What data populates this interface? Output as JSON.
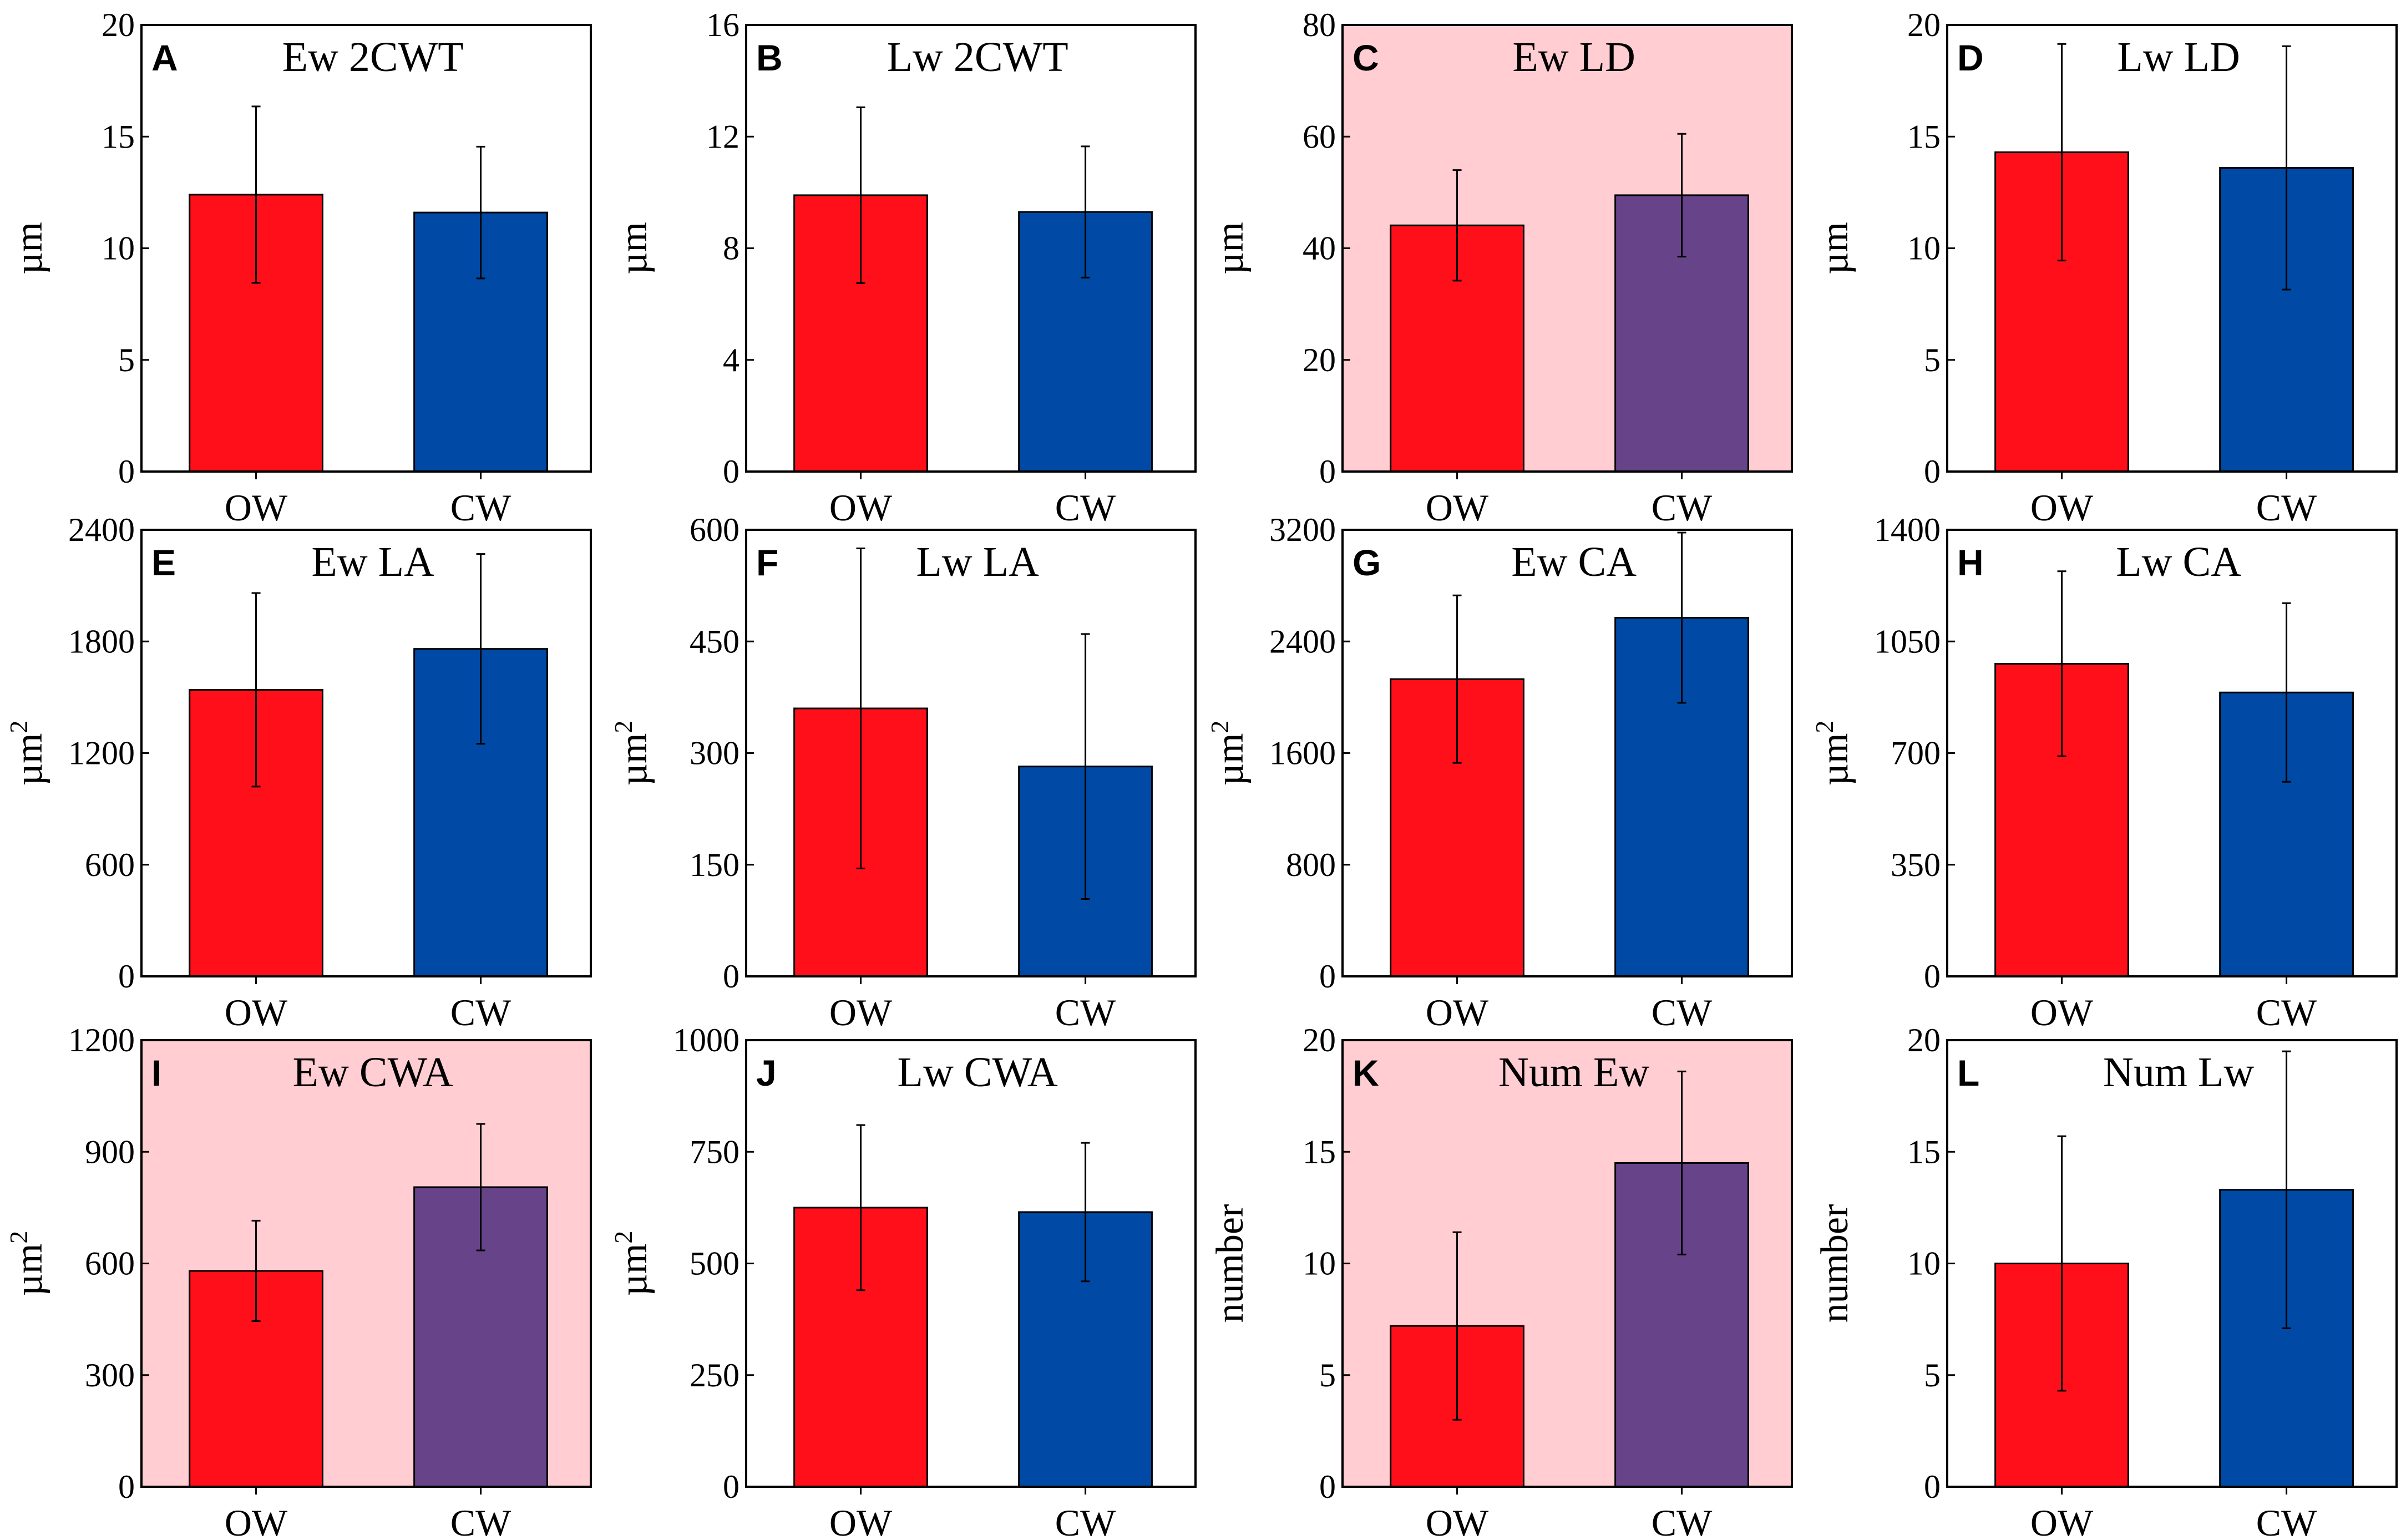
{
  "colors": {
    "ow": "#ff0f19",
    "cw": "#004aa5",
    "cw_significant": "#67448a",
    "significant_bg": "#ffcdd2",
    "significant_title": "#8a5a5a"
  },
  "chart_data": [
    {
      "type": "bar",
      "letter": "A",
      "title": "Ew 2CWT",
      "ylabel": "µm",
      "ylabel_sup": "",
      "xlabel": "",
      "ylim": [
        0,
        20
      ],
      "yticks": [
        "0",
        "5",
        "10",
        "15",
        "20"
      ],
      "categories": [
        "OW",
        "CW"
      ],
      "values": [
        12.4,
        11.6
      ],
      "errors": [
        3.95,
        2.95
      ],
      "significant": false
    },
    {
      "type": "bar",
      "letter": "B",
      "title": "Lw 2CWT",
      "ylabel": "µm",
      "ylabel_sup": "",
      "xlabel": "",
      "ylim": [
        0,
        16
      ],
      "yticks": [
        "0",
        "4",
        "8",
        "12",
        "16"
      ],
      "categories": [
        "OW",
        "CW"
      ],
      "values": [
        9.9,
        9.3
      ],
      "errors": [
        3.15,
        2.35
      ],
      "significant": false
    },
    {
      "type": "bar",
      "letter": "C",
      "title": "Ew LD",
      "ylabel": "µm",
      "ylabel_sup": "",
      "xlabel": "",
      "ylim": [
        0,
        80
      ],
      "yticks": [
        "0",
        "20",
        "40",
        "60",
        "80"
      ],
      "categories": [
        "OW",
        "CW"
      ],
      "values": [
        44.1,
        49.5
      ],
      "errors": [
        9.9,
        11.0
      ],
      "significant": true
    },
    {
      "type": "bar",
      "letter": "D",
      "title": "Lw LD",
      "ylabel": "µm",
      "ylabel_sup": "",
      "xlabel": "",
      "ylim": [
        0,
        20
      ],
      "yticks": [
        "0",
        "5",
        "10",
        "15",
        "20"
      ],
      "categories": [
        "OW",
        "CW"
      ],
      "values": [
        14.3,
        13.6
      ],
      "errors": [
        4.85,
        5.45
      ],
      "significant": false
    },
    {
      "type": "bar",
      "letter": "E",
      "title": "Ew LA",
      "ylabel": "µm",
      "ylabel_sup": "2",
      "xlabel": "",
      "ylim": [
        0,
        2400
      ],
      "yticks": [
        "0",
        "600",
        "1200",
        "1800",
        "2400"
      ],
      "categories": [
        "OW",
        "CW"
      ],
      "values": [
        1540,
        1760
      ],
      "errors": [
        520,
        510
      ],
      "significant": false
    },
    {
      "type": "bar",
      "letter": "F",
      "title": "Lw LA",
      "ylabel": "µm",
      "ylabel_sup": "2",
      "xlabel": "",
      "ylim": [
        0,
        600
      ],
      "yticks": [
        "0",
        "150",
        "300",
        "450",
        "600"
      ],
      "categories": [
        "OW",
        "CW"
      ],
      "values": [
        360,
        282
      ],
      "errors": [
        215,
        178
      ],
      "significant": false
    },
    {
      "type": "bar",
      "letter": "G",
      "title": "Ew CA",
      "ylabel": "µm",
      "ylabel_sup": "2",
      "xlabel": "",
      "ylim": [
        0,
        3200
      ],
      "yticks": [
        "0",
        "800",
        "1600",
        "2400",
        "3200"
      ],
      "categories": [
        "OW",
        "CW"
      ],
      "values": [
        2130,
        2570
      ],
      "errors": [
        600,
        610
      ],
      "significant": false
    },
    {
      "type": "bar",
      "letter": "H",
      "title": "Lw CA",
      "ylabel": "µm",
      "ylabel_sup": "2",
      "xlabel": "",
      "ylim": [
        0,
        1400
      ],
      "yticks": [
        "0",
        "350",
        "700",
        "1050",
        "1400"
      ],
      "categories": [
        "OW",
        "CW"
      ],
      "values": [
        980,
        890
      ],
      "errors": [
        290,
        280
      ],
      "significant": false
    },
    {
      "type": "bar",
      "letter": "I",
      "title": "Ew CWA",
      "ylabel": "µm",
      "ylabel_sup": "2",
      "xlabel": "",
      "ylim": [
        0,
        1200
      ],
      "yticks": [
        "0",
        "300",
        "600",
        "900",
        "1200"
      ],
      "categories": [
        "OW",
        "CW"
      ],
      "values": [
        580,
        805
      ],
      "errors": [
        135,
        170
      ],
      "significant": true
    },
    {
      "type": "bar",
      "letter": "J",
      "title": "Lw CWA",
      "ylabel": "µm",
      "ylabel_sup": "2",
      "xlabel": "",
      "ylim": [
        0,
        1000
      ],
      "yticks": [
        "0",
        "250",
        "500",
        "750",
        "1000"
      ],
      "categories": [
        "OW",
        "CW"
      ],
      "values": [
        625,
        615
      ],
      "errors": [
        185,
        155
      ],
      "significant": false
    },
    {
      "type": "bar",
      "letter": "K",
      "title": "Num Ew",
      "ylabel": "number",
      "ylabel_sup": "",
      "xlabel": "",
      "ylim": [
        0,
        20
      ],
      "yticks": [
        "0",
        "5",
        "10",
        "15",
        "20"
      ],
      "categories": [
        "OW",
        "CW"
      ],
      "values": [
        7.2,
        14.5
      ],
      "errors": [
        4.2,
        4.1
      ],
      "significant": true
    },
    {
      "type": "bar",
      "letter": "L",
      "title": "Num Lw",
      "ylabel": "number",
      "ylabel_sup": "",
      "xlabel": "",
      "ylim": [
        0,
        20
      ],
      "yticks": [
        "0",
        "5",
        "10",
        "15",
        "20"
      ],
      "categories": [
        "OW",
        "CW"
      ],
      "values": [
        10.0,
        13.3
      ],
      "errors": [
        5.7,
        6.2
      ],
      "significant": false
    }
  ]
}
